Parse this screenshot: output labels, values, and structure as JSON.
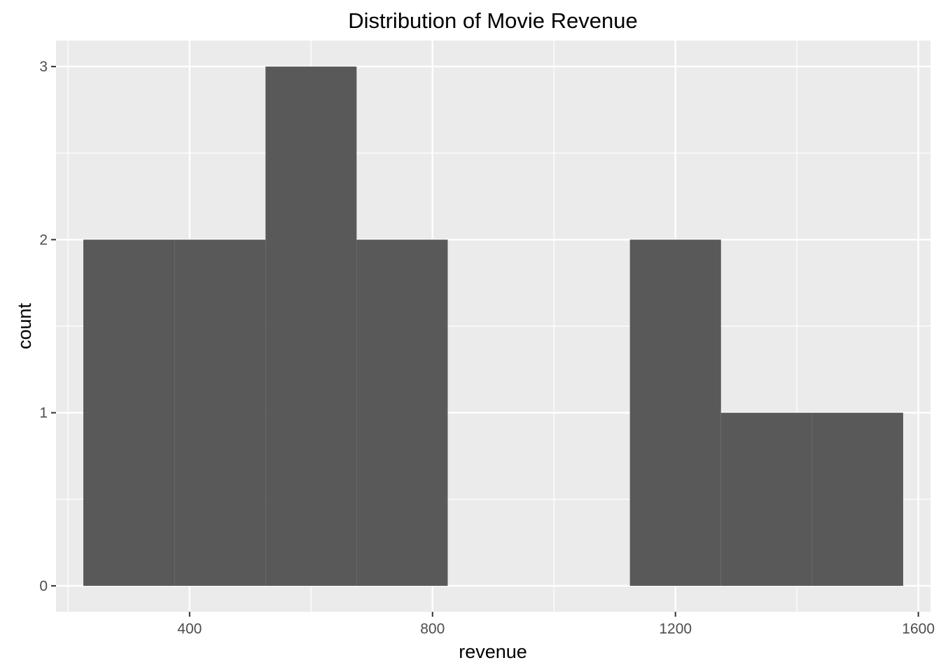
{
  "chart_data": {
    "type": "bar",
    "subtype": "histogram",
    "title": "Distribution of Movie Revenue",
    "xlabel": "revenue",
    "ylabel": "count",
    "bins": [
      {
        "x0": 225,
        "x1": 375,
        "count": 2
      },
      {
        "x0": 375,
        "x1": 525,
        "count": 2
      },
      {
        "x0": 525,
        "x1": 675,
        "count": 3
      },
      {
        "x0": 675,
        "x1": 825,
        "count": 2
      },
      {
        "x0": 825,
        "x1": 975,
        "count": 0
      },
      {
        "x0": 975,
        "x1": 1125,
        "count": 0
      },
      {
        "x0": 1125,
        "x1": 1275,
        "count": 2
      },
      {
        "x0": 1275,
        "x1": 1425,
        "count": 1
      },
      {
        "x0": 1425,
        "x1": 1575,
        "count": 1
      }
    ],
    "xlim": [
      180,
      1620
    ],
    "ylim": [
      -0.15,
      3.15
    ],
    "x_ticks": [
      400,
      800,
      1200,
      1600
    ],
    "x_tick_labels": [
      "400",
      "800",
      "1200",
      "1600"
    ],
    "y_ticks": [
      0,
      1,
      2,
      3
    ],
    "y_tick_labels": [
      "0",
      "1",
      "2",
      "3"
    ],
    "grid": true,
    "colors": {
      "panel_background": "#ebebeb",
      "grid_major": "#ffffff",
      "bar_fill": "#595959",
      "tick_text": "#4d4d4d",
      "text": "#000000"
    }
  }
}
